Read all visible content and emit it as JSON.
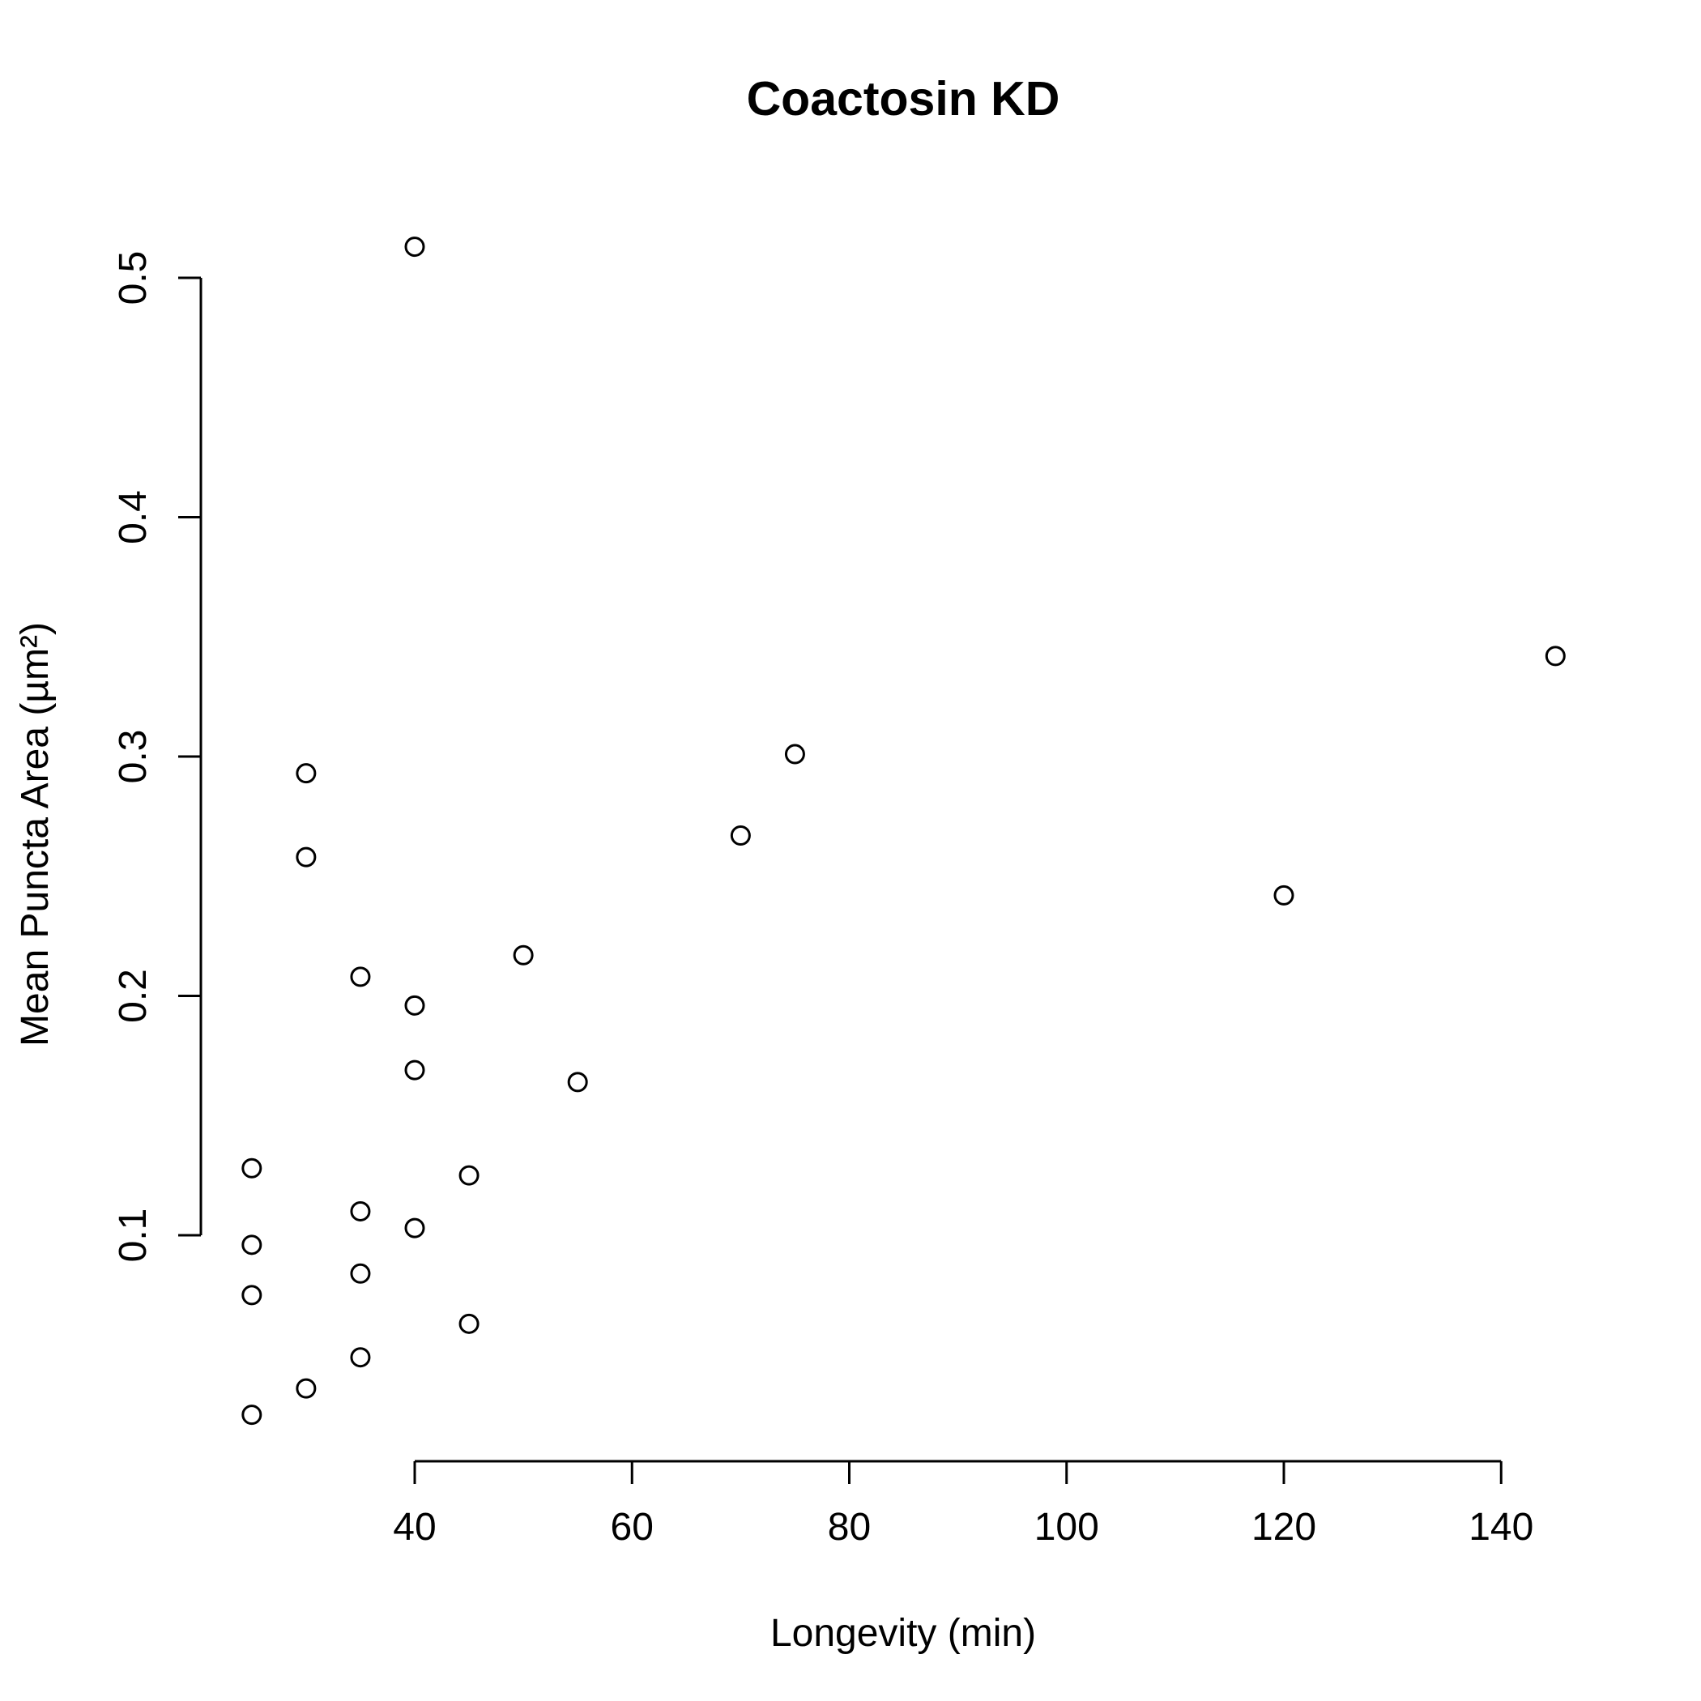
{
  "chart_data": {
    "type": "scatter",
    "title": "Coactosin KD",
    "xlabel": "Longevity (min)",
    "ylabel": "Mean Puncta Area (µm²)",
    "xlim": [
      20,
      145
    ],
    "ylim": [
      0.02,
      0.515
    ],
    "x_ticks": [
      40,
      60,
      80,
      100,
      120,
      140
    ],
    "y_ticks": [
      0.1,
      0.2,
      0.3,
      0.4,
      0.5
    ],
    "x_tick_labels": [
      "40",
      "60",
      "80",
      "100",
      "120",
      "140"
    ],
    "y_tick_labels": [
      "0.1",
      "0.2",
      "0.3",
      "0.4",
      "0.5"
    ],
    "grid": false,
    "legend": "none",
    "marker": "open-circle",
    "points": [
      {
        "x": 40,
        "y": 0.513
      },
      {
        "x": 145,
        "y": 0.342
      },
      {
        "x": 75,
        "y": 0.301
      },
      {
        "x": 30,
        "y": 0.293
      },
      {
        "x": 70,
        "y": 0.267
      },
      {
        "x": 30,
        "y": 0.258
      },
      {
        "x": 120,
        "y": 0.242
      },
      {
        "x": 50,
        "y": 0.217
      },
      {
        "x": 35,
        "y": 0.208
      },
      {
        "x": 40,
        "y": 0.196
      },
      {
        "x": 40,
        "y": 0.169
      },
      {
        "x": 55,
        "y": 0.164
      },
      {
        "x": 25,
        "y": 0.128
      },
      {
        "x": 45,
        "y": 0.125
      },
      {
        "x": 35,
        "y": 0.11
      },
      {
        "x": 40,
        "y": 0.103
      },
      {
        "x": 25,
        "y": 0.096
      },
      {
        "x": 35,
        "y": 0.084
      },
      {
        "x": 25,
        "y": 0.075
      },
      {
        "x": 45,
        "y": 0.063
      },
      {
        "x": 35,
        "y": 0.049
      },
      {
        "x": 30,
        "y": 0.036
      },
      {
        "x": 25,
        "y": 0.025
      }
    ]
  }
}
